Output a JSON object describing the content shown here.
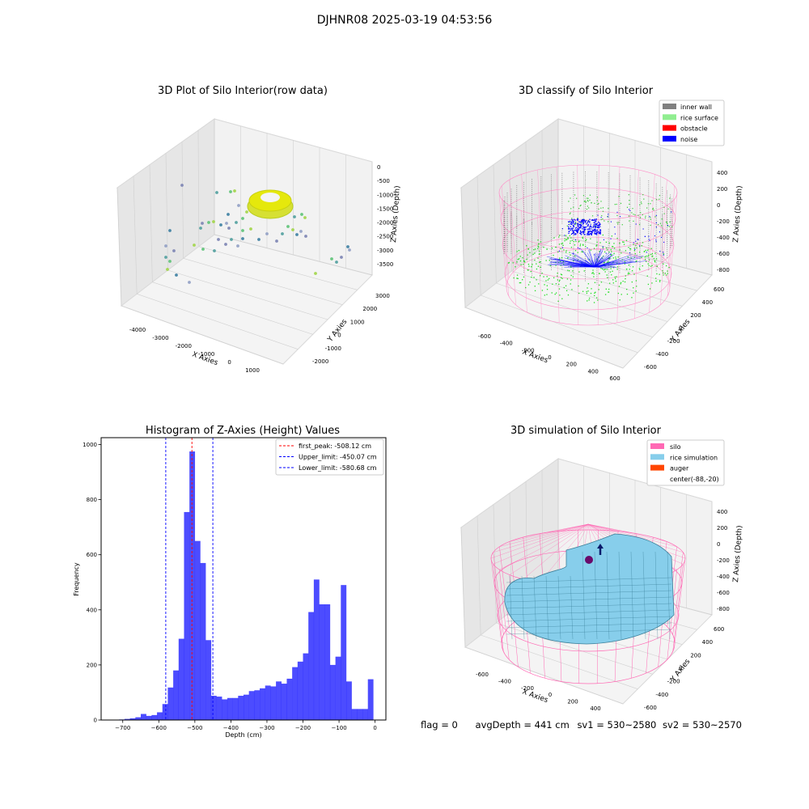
{
  "figure": {
    "suptitle": "DJHNR08 2025-03-19 04:53:56",
    "status_line": {
      "flag": "flag = 0",
      "avg_depth": "avgDepth = 441 cm",
      "sv1": "sv1 = 530~2580",
      "sv2": "sv2 = 530~2570"
    }
  },
  "chart_data": [
    {
      "type": "scatter",
      "projection": "3d",
      "title": "3D Plot of Silo Interior(row data)",
      "xlabel": "X Axies",
      "ylabel": "Y Axies",
      "zlabel": "Z Axies (Depth)",
      "x_ticks": [
        "-4000",
        "-3000",
        "-2000",
        "-1000",
        "0",
        "1000"
      ],
      "y_ticks": [
        "-2000",
        "-1000",
        "0",
        "1000",
        "2000",
        "3000"
      ],
      "z_ticks": [
        "0",
        "-500",
        "-1000",
        "-1500",
        "-2000",
        "-2500",
        "-3000",
        "-3500"
      ],
      "xlim": [
        -4500,
        1500
      ],
      "ylim": [
        -2300,
        3300
      ],
      "zlim": [
        -3800,
        200
      ],
      "colormap": "viridis",
      "grid": true
    },
    {
      "type": "scatter",
      "projection": "3d",
      "title": "3D classify of Silo Interior",
      "xlabel": "X Axies",
      "ylabel": "Y Axies",
      "zlabel": "Z Axies (Depth)",
      "x_ticks": [
        "-600",
        "-400",
        "-200",
        "0",
        "200",
        "400",
        "600"
      ],
      "y_ticks": [
        "-600",
        "-400",
        "-200",
        "0",
        "200",
        "400",
        "600"
      ],
      "z_ticks": [
        "400",
        "200",
        "0",
        "-200",
        "-400",
        "-600",
        "-800"
      ],
      "legend_position": "top-right",
      "legend": [
        {
          "label": "inner wall",
          "color": "#808080"
        },
        {
          "label": "rice surface",
          "color": "#90ee90"
        },
        {
          "label": "obstacle",
          "color": "#ff0000"
        },
        {
          "label": "noise",
          "color": "#0000ff"
        }
      ],
      "grid": true
    },
    {
      "type": "bar",
      "title": "Histogram of Z-Axies (Height) Values",
      "xlabel": "Depth (cm)",
      "ylabel": "Frequency",
      "xlim": [
        -760,
        30
      ],
      "ylim": [
        0,
        1025
      ],
      "x_ticks": [
        -700,
        -600,
        -500,
        -400,
        -300,
        -200,
        -100,
        0
      ],
      "y_ticks": [
        0,
        200,
        400,
        600,
        800,
        1000
      ],
      "bar_color": "#0000ff",
      "bin_edges": [
        -710,
        -695,
        -680,
        -665,
        -650,
        -635,
        -620,
        -605,
        -590,
        -575,
        -560,
        -545,
        -530,
        -515,
        -500,
        -485,
        -470,
        -455,
        -440,
        -425,
        -410,
        -395,
        -380,
        -365,
        -350,
        -335,
        -320,
        -305,
        -290,
        -275,
        -260,
        -245,
        -230,
        -215,
        -200,
        -185,
        -170,
        -155,
        -140,
        -125,
        -110,
        -95,
        -80,
        -65,
        -50,
        -35,
        -20,
        -5,
        10
      ],
      "values": [
        2,
        4,
        6,
        10,
        22,
        15,
        18,
        28,
        58,
        118,
        180,
        295,
        755,
        975,
        650,
        570,
        290,
        88,
        85,
        75,
        80,
        80,
        88,
        92,
        105,
        108,
        115,
        125,
        122,
        140,
        132,
        150,
        192,
        212,
        242,
        392,
        510,
        420,
        420,
        200,
        230,
        490,
        140,
        40,
        40,
        40,
        148,
        0
      ],
      "vlines": [
        {
          "label": "first_peak: -508.12 cm",
          "x": -508.12,
          "color": "#ff0000"
        },
        {
          "label": "Upper_limit: -450.07 cm",
          "x": -450.07,
          "color": "#0000ff"
        },
        {
          "label": "Lower_limit: -580.68 cm",
          "x": -580.68,
          "color": "#0000ff"
        }
      ],
      "legend_position": "top-right",
      "grid": false
    },
    {
      "type": "area",
      "projection": "3d",
      "title": "3D simulation of Silo Interior",
      "xlabel": "X Axies",
      "ylabel": "Y Axies",
      "zlabel": "Z Axies (Depth)",
      "x_ticks": [
        "-600",
        "-400",
        "-200",
        "0",
        "200",
        "400"
      ],
      "y_ticks": [
        "-600",
        "-400",
        "-200",
        "0",
        "200",
        "400",
        "600"
      ],
      "z_ticks": [
        "400",
        "200",
        "0",
        "-200",
        "-400",
        "-600",
        "-800"
      ],
      "legend_position": "top-right",
      "legend": [
        {
          "label": "silo",
          "color": "#ff69b4"
        },
        {
          "label": "rice simulation",
          "color": "#87ceeb"
        },
        {
          "label": "auger",
          "color": "#ff4500"
        },
        {
          "label": "center(-88,-20)",
          "color": ""
        }
      ],
      "grid": true
    }
  ]
}
